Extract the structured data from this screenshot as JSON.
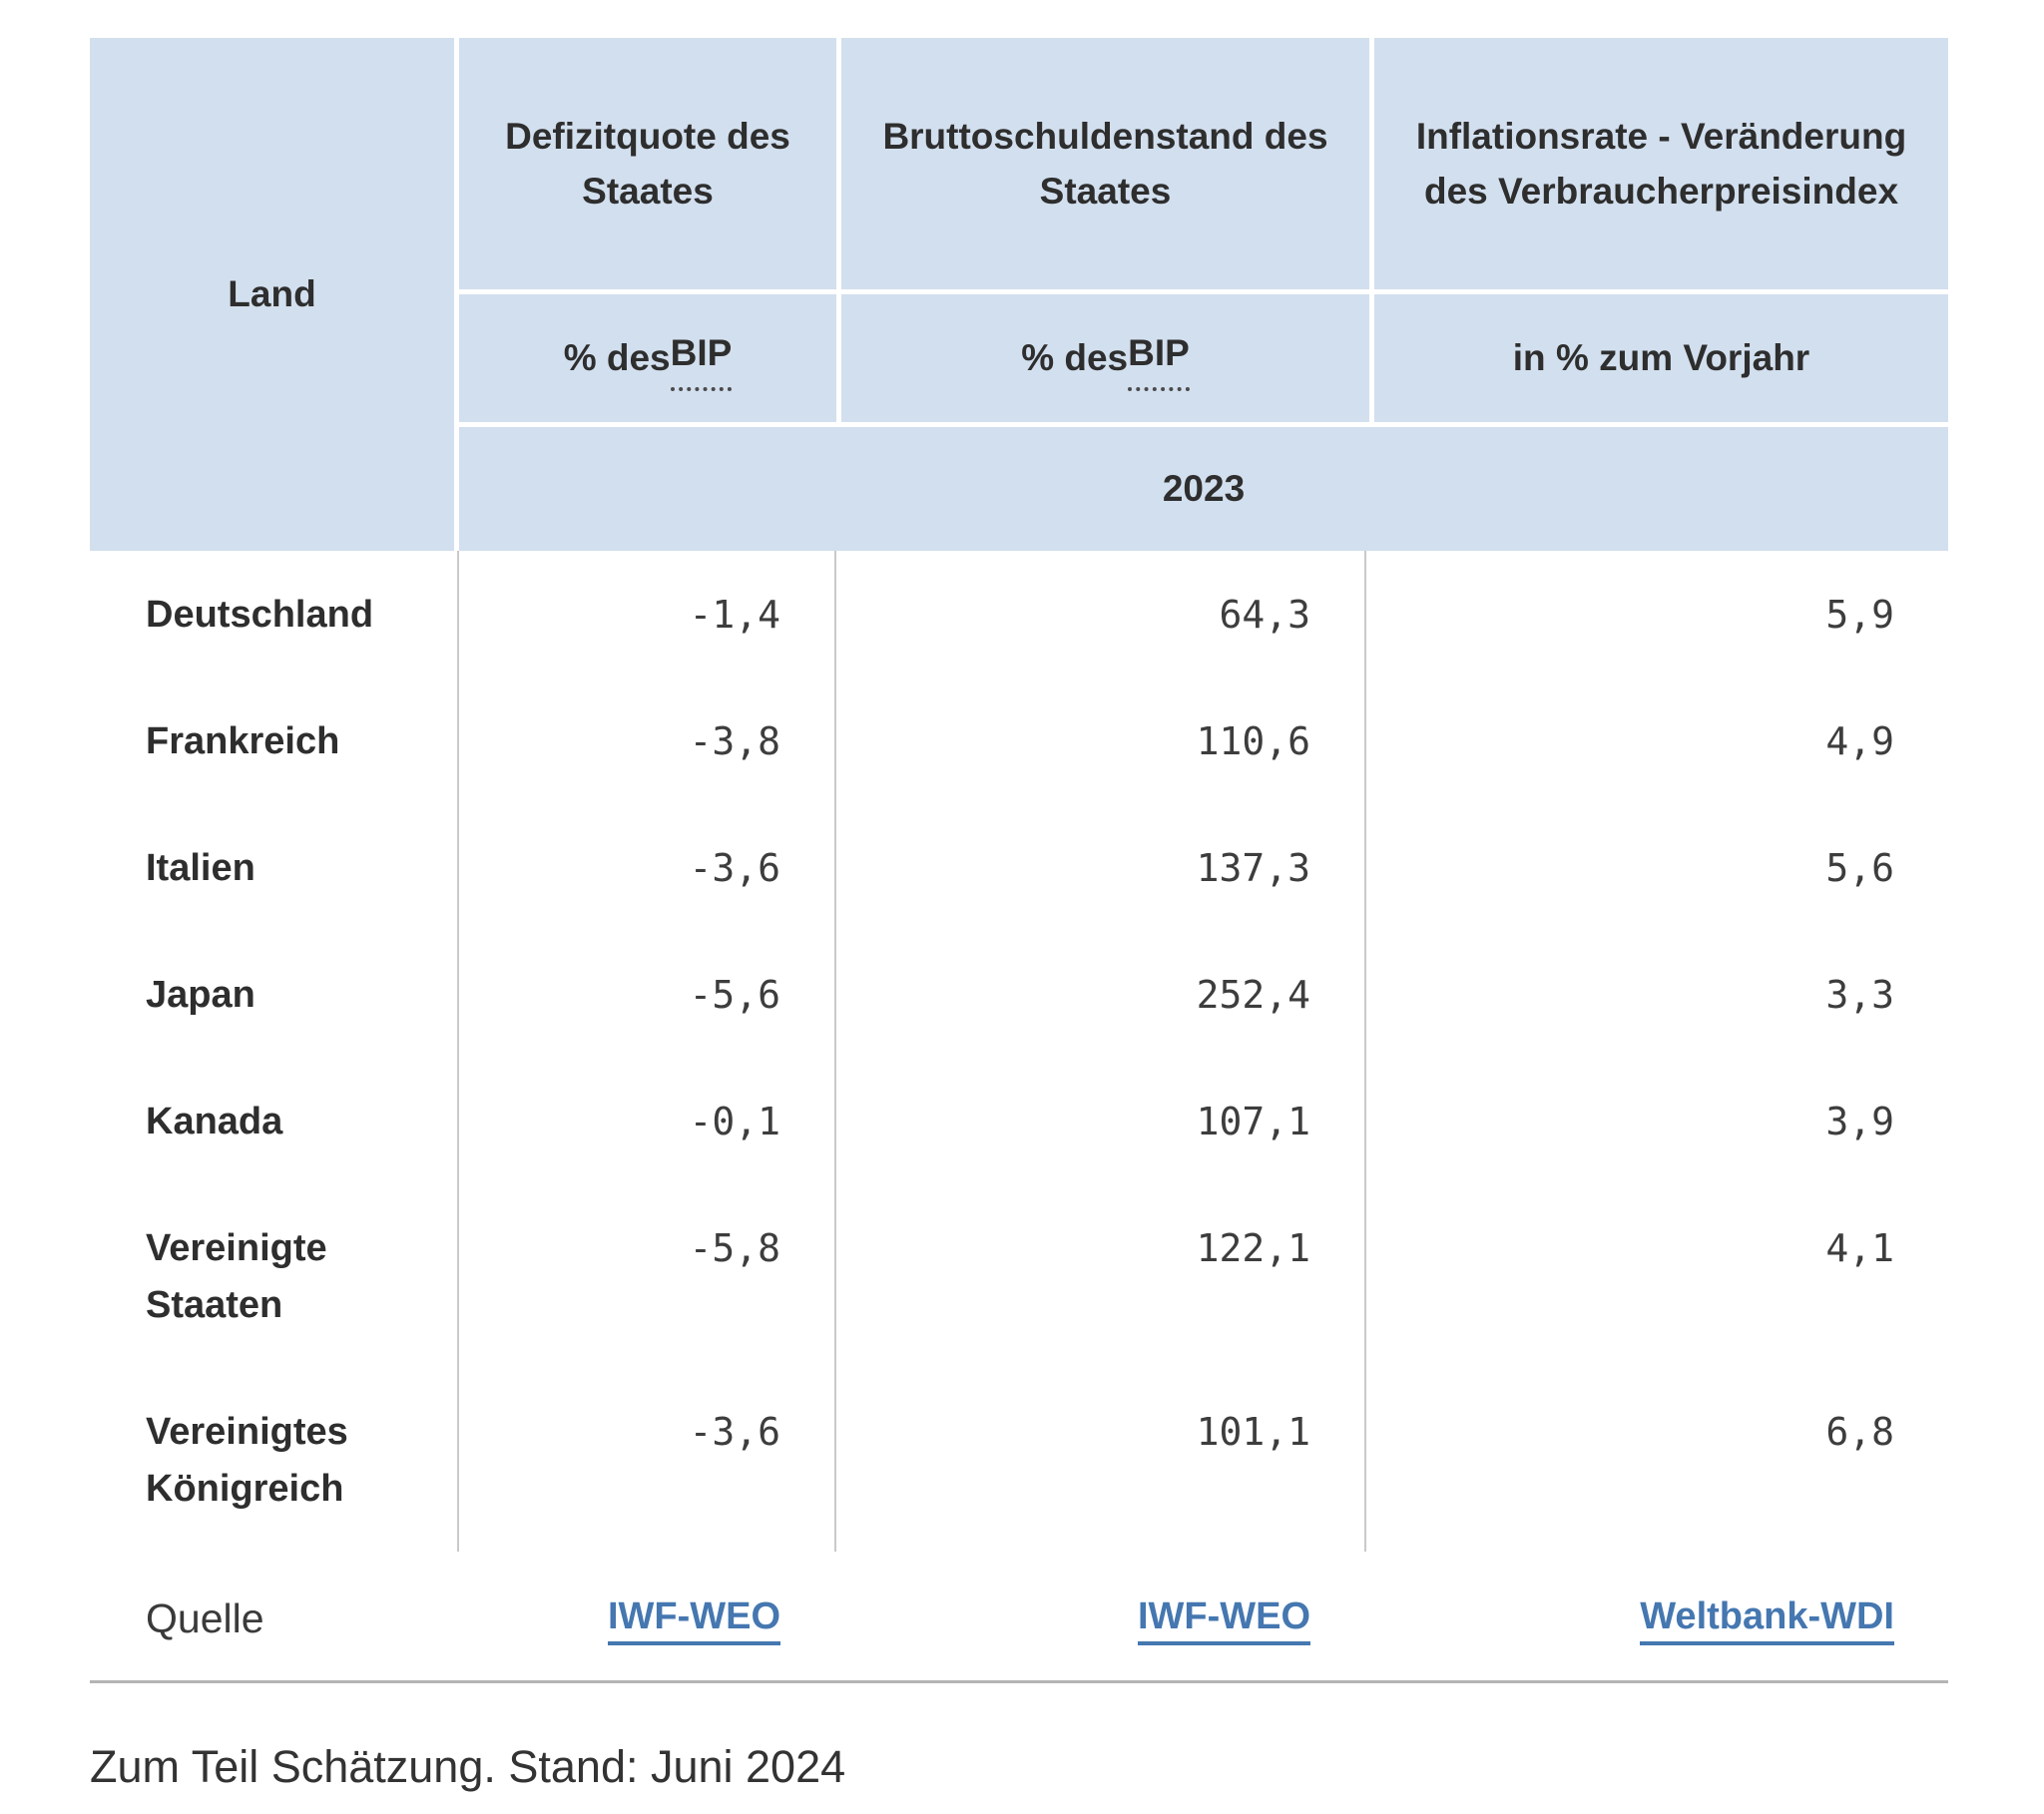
{
  "table": {
    "corner_label": "Land",
    "year_label": "2023",
    "columns": [
      {
        "title": "Defizitquote des Staates",
        "unit_plain": "% des ",
        "unit_abbr": "BIP"
      },
      {
        "title": "Bruttoschuldenstand des Staates",
        "unit_plain": "% des ",
        "unit_abbr": "BIP"
      },
      {
        "title": "Inflationsrate - Veränderung des Verbraucherpreisindex",
        "unit_plain": "in % zum Vorjahr",
        "unit_abbr": ""
      }
    ],
    "rows": [
      {
        "land": "Deutschland",
        "defizitquote": "-1,4",
        "bruttoschuldenstand": "64,3",
        "inflationsrate": "5,9"
      },
      {
        "land": "Frankreich",
        "defizitquote": "-3,8",
        "bruttoschuldenstand": "110,6",
        "inflationsrate": "4,9"
      },
      {
        "land": "Italien",
        "defizitquote": "-3,6",
        "bruttoschuldenstand": "137,3",
        "inflationsrate": "5,6"
      },
      {
        "land": "Japan",
        "defizitquote": "-5,6",
        "bruttoschuldenstand": "252,4",
        "inflationsrate": "3,3"
      },
      {
        "land": "Kanada",
        "defizitquote": "-0,1",
        "bruttoschuldenstand": "107,1",
        "inflationsrate": "3,9"
      },
      {
        "land": "Vereinigte Staaten",
        "defizitquote": "-5,8",
        "bruttoschuldenstand": "122,1",
        "inflationsrate": "4,1"
      },
      {
        "land": "Vereinigtes Königreich",
        "defizitquote": "-3,6",
        "bruttoschuldenstand": "101,1",
        "inflationsrate": "6,8"
      }
    ],
    "sources": {
      "label": "Quelle",
      "links": [
        "IWF-WEO",
        "IWF-WEO",
        "Weltbank-WDI"
      ]
    }
  },
  "footer": {
    "note": "Zum Teil Schätzung. Stand: Juni 2024"
  },
  "colors": {
    "header_bg": "#d2dfee",
    "link": "#4577b0",
    "grid_line": "#c9c9c9",
    "divider": "#b4b4b4",
    "text": "#323232"
  }
}
